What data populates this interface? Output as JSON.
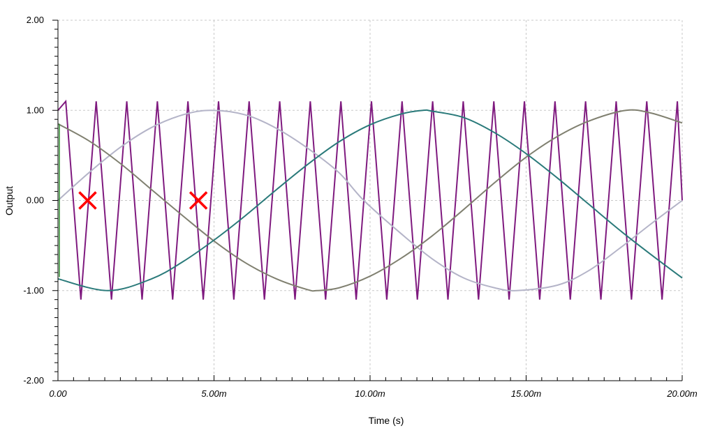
{
  "chart_data": {
    "type": "line",
    "title": "",
    "xlabel": "Time (s)",
    "ylabel": "Output",
    "xlim": [
      0,
      0.02
    ],
    "ylim": [
      -2,
      2
    ],
    "grid": true,
    "legend": "none",
    "x_ticks": [
      {
        "value": 0,
        "label": "0.00"
      },
      {
        "value": 0.005,
        "label": "5.00m"
      },
      {
        "value": 0.01,
        "label": "10.00m"
      },
      {
        "value": 0.015,
        "label": "15.00m"
      },
      {
        "value": 0.02,
        "label": "20.00m"
      }
    ],
    "y_ticks": [
      {
        "value": 2,
        "label": "2.00"
      },
      {
        "value": 1,
        "label": "1.00"
      },
      {
        "value": 0,
        "label": "0.00"
      },
      {
        "value": -1,
        "label": "-1.00"
      },
      {
        "value": -2,
        "label": "-2.00"
      }
    ],
    "series": [
      {
        "color": "#7f1a7f",
        "points": [
          [
            0,
            1.0
          ],
          [
            0.00025,
            1.1
          ],
          [
            0.000735,
            -1.1
          ],
          [
            0.001225,
            1.1
          ],
          [
            0.001715,
            -1.1
          ],
          [
            0.002205,
            1.1
          ],
          [
            0.002695,
            -1.1
          ],
          [
            0.003185,
            1.1
          ],
          [
            0.003675,
            -1.1
          ],
          [
            0.004165,
            1.1
          ],
          [
            0.004655,
            -1.1
          ],
          [
            0.005145,
            1.1
          ],
          [
            0.005635,
            -1.1
          ],
          [
            0.006125,
            1.1
          ],
          [
            0.006615,
            -1.1
          ],
          [
            0.007105,
            1.1
          ],
          [
            0.007595,
            -1.1
          ],
          [
            0.008085,
            1.1
          ],
          [
            0.008575,
            -1.1
          ],
          [
            0.009065,
            1.1
          ],
          [
            0.009555,
            -1.1
          ],
          [
            0.010045,
            1.1
          ],
          [
            0.010535,
            -1.1
          ],
          [
            0.011025,
            1.1
          ],
          [
            0.011515,
            -1.1
          ],
          [
            0.012005,
            1.1
          ],
          [
            0.012495,
            -1.1
          ],
          [
            0.012985,
            1.1
          ],
          [
            0.013475,
            -1.1
          ],
          [
            0.013965,
            1.1
          ],
          [
            0.014455,
            -1.1
          ],
          [
            0.014945,
            1.1
          ],
          [
            0.015435,
            -1.1
          ],
          [
            0.015925,
            1.1
          ],
          [
            0.016415,
            -1.1
          ],
          [
            0.016905,
            1.1
          ],
          [
            0.017395,
            -1.1
          ],
          [
            0.017885,
            1.1
          ],
          [
            0.018375,
            -1.1
          ],
          [
            0.018865,
            1.1
          ],
          [
            0.019355,
            -1.1
          ],
          [
            0.019845,
            1.1
          ],
          [
            0.02,
            0.0
          ]
        ]
      },
      {
        "color": "#b4b4c8",
        "points": [
          [
            0,
            0.0
          ],
          [
            0.001,
            0.31
          ],
          [
            0.002,
            0.59
          ],
          [
            0.003,
            0.81
          ],
          [
            0.004,
            0.95
          ],
          [
            0.0049,
            1.0
          ],
          [
            0.006,
            0.95
          ],
          [
            0.007,
            0.8
          ],
          [
            0.008,
            0.58
          ],
          [
            0.009,
            0.31
          ],
          [
            0.0098,
            0.0
          ],
          [
            0.011,
            -0.37
          ],
          [
            0.012,
            -0.65
          ],
          [
            0.013,
            -0.86
          ],
          [
            0.014,
            -0.97
          ],
          [
            0.0147,
            -1.0
          ],
          [
            0.016,
            -0.94
          ],
          [
            0.017,
            -0.78
          ],
          [
            0.018,
            -0.53
          ],
          [
            0.019,
            -0.26
          ],
          [
            0.02,
            0.0
          ]
        ]
      },
      {
        "color": "#808070",
        "points": [
          [
            0,
            0.85
          ],
          [
            0.001,
            0.66
          ],
          [
            0.002,
            0.41
          ],
          [
            0.003,
            0.12
          ],
          [
            0.004,
            -0.17
          ],
          [
            0.005,
            -0.45
          ],
          [
            0.006,
            -0.69
          ],
          [
            0.007,
            -0.87
          ],
          [
            0.008,
            -0.99
          ],
          [
            0.0083,
            -1.0
          ],
          [
            0.009,
            -0.97
          ],
          [
            0.01,
            -0.84
          ],
          [
            0.011,
            -0.64
          ],
          [
            0.012,
            -0.39
          ],
          [
            0.013,
            -0.1
          ],
          [
            0.014,
            0.2
          ],
          [
            0.015,
            0.48
          ],
          [
            0.016,
            0.71
          ],
          [
            0.017,
            0.88
          ],
          [
            0.0182,
            1.0
          ],
          [
            0.019,
            0.97
          ],
          [
            0.02,
            0.86
          ]
        ]
      },
      {
        "color": "#2a7a7a",
        "points": [
          [
            0,
            -0.87
          ],
          [
            0.0016,
            -1.0
          ],
          [
            0.003,
            -0.87
          ],
          [
            0.004,
            -0.68
          ],
          [
            0.005,
            -0.44
          ],
          [
            0.006,
            -0.17
          ],
          [
            0.007,
            0.12
          ],
          [
            0.008,
            0.4
          ],
          [
            0.009,
            0.65
          ],
          [
            0.01,
            0.84
          ],
          [
            0.011,
            0.96
          ],
          [
            0.0117,
            1.0
          ],
          [
            0.012,
            0.99
          ],
          [
            0.013,
            0.92
          ],
          [
            0.014,
            0.75
          ],
          [
            0.015,
            0.52
          ],
          [
            0.016,
            0.25
          ],
          [
            0.017,
            -0.04
          ],
          [
            0.018,
            -0.33
          ],
          [
            0.019,
            -0.6
          ],
          [
            0.02,
            -0.86
          ]
        ]
      }
    ],
    "markers": [
      {
        "shape": "x",
        "color": "#ff0000",
        "x": 0.00095,
        "y": 0.0
      },
      {
        "shape": "x",
        "color": "#ff0000",
        "x": 0.0045,
        "y": 0.0
      }
    ]
  }
}
